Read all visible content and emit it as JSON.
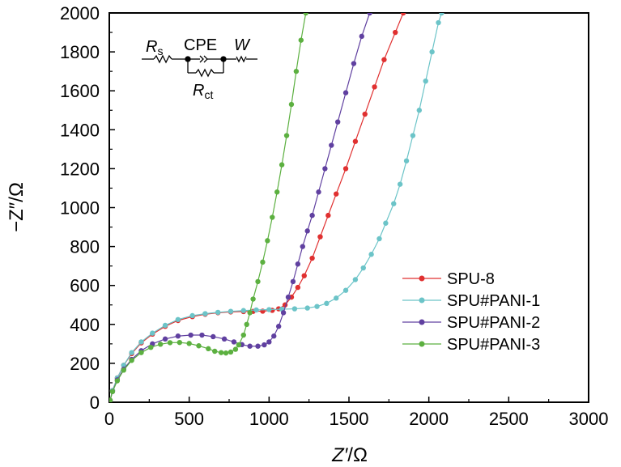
{
  "chart_data": {
    "type": "scatter",
    "title": "",
    "xlabel": {
      "main": "Z′",
      "unit": "/Ω"
    },
    "ylabel": "−Z″/Ω",
    "xlim": [
      0,
      3000
    ],
    "ylim": [
      0,
      2000
    ],
    "xticks": [
      0,
      500,
      1000,
      1500,
      2000,
      2500,
      3000
    ],
    "yticks": [
      0,
      200,
      400,
      600,
      800,
      1000,
      1200,
      1400,
      1600,
      1800,
      2000
    ],
    "tick_labels_x": [
      "0",
      "500",
      "1000",
      "1500",
      "2000",
      "2500",
      "3000"
    ],
    "tick_labels_y": [
      "0",
      "200",
      "400",
      "600",
      "800",
      "1000",
      "1200",
      "1400",
      "1600",
      "1800",
      "2000"
    ],
    "legend_position": "lower-right",
    "series": [
      {
        "name": "SPU-8",
        "color": "#e03030",
        "points": [
          [
            5,
            10
          ],
          [
            20,
            60
          ],
          [
            50,
            125
          ],
          [
            90,
            190
          ],
          [
            140,
            250
          ],
          [
            200,
            305
          ],
          [
            270,
            350
          ],
          [
            350,
            390
          ],
          [
            430,
            420
          ],
          [
            520,
            440
          ],
          [
            600,
            452
          ],
          [
            680,
            460
          ],
          [
            760,
            464
          ],
          [
            840,
            466
          ],
          [
            900,
            467
          ],
          [
            960,
            468
          ],
          [
            1020,
            472
          ],
          [
            1060,
            480
          ],
          [
            1100,
            500
          ],
          [
            1140,
            540
          ],
          [
            1180,
            590
          ],
          [
            1220,
            650
          ],
          [
            1270,
            740
          ],
          [
            1320,
            850
          ],
          [
            1370,
            960
          ],
          [
            1420,
            1070
          ],
          [
            1480,
            1200
          ],
          [
            1540,
            1340
          ],
          [
            1600,
            1480
          ],
          [
            1660,
            1620
          ],
          [
            1720,
            1760
          ],
          [
            1790,
            1900
          ],
          [
            1840,
            2000
          ]
        ]
      },
      {
        "name": "SPU#PANI-1",
        "color": "#6cc4c8",
        "points": [
          [
            5,
            10
          ],
          [
            20,
            60
          ],
          [
            50,
            125
          ],
          [
            90,
            190
          ],
          [
            140,
            255
          ],
          [
            200,
            310
          ],
          [
            270,
            355
          ],
          [
            350,
            395
          ],
          [
            430,
            425
          ],
          [
            520,
            445
          ],
          [
            600,
            455
          ],
          [
            680,
            462
          ],
          [
            760,
            467
          ],
          [
            840,
            471
          ],
          [
            920,
            474
          ],
          [
            1000,
            476
          ],
          [
            1080,
            478
          ],
          [
            1160,
            480
          ],
          [
            1240,
            484
          ],
          [
            1300,
            492
          ],
          [
            1360,
            508
          ],
          [
            1420,
            535
          ],
          [
            1480,
            575
          ],
          [
            1540,
            630
          ],
          [
            1590,
            690
          ],
          [
            1640,
            760
          ],
          [
            1690,
            840
          ],
          [
            1730,
            920
          ],
          [
            1780,
            1020
          ],
          [
            1820,
            1120
          ],
          [
            1860,
            1240
          ],
          [
            1900,
            1370
          ],
          [
            1940,
            1500
          ],
          [
            1980,
            1650
          ],
          [
            2020,
            1800
          ],
          [
            2060,
            1950
          ],
          [
            2080,
            2000
          ]
        ]
      },
      {
        "name": "SPU#PANI-2",
        "color": "#6040a0",
        "points": [
          [
            5,
            10
          ],
          [
            20,
            55
          ],
          [
            50,
            115
          ],
          [
            90,
            170
          ],
          [
            140,
            220
          ],
          [
            200,
            265
          ],
          [
            270,
            300
          ],
          [
            350,
            325
          ],
          [
            430,
            340
          ],
          [
            510,
            345
          ],
          [
            580,
            345
          ],
          [
            650,
            337
          ],
          [
            720,
            325
          ],
          [
            780,
            310
          ],
          [
            830,
            296
          ],
          [
            880,
            288
          ],
          [
            930,
            288
          ],
          [
            970,
            295
          ],
          [
            1000,
            310
          ],
          [
            1030,
            340
          ],
          [
            1060,
            390
          ],
          [
            1090,
            460
          ],
          [
            1120,
            540
          ],
          [
            1150,
            620
          ],
          [
            1180,
            710
          ],
          [
            1210,
            800
          ],
          [
            1240,
            880
          ],
          [
            1270,
            960
          ],
          [
            1310,
            1080
          ],
          [
            1350,
            1200
          ],
          [
            1390,
            1320
          ],
          [
            1430,
            1440
          ],
          [
            1480,
            1590
          ],
          [
            1530,
            1740
          ],
          [
            1580,
            1880
          ],
          [
            1630,
            2000
          ]
        ]
      },
      {
        "name": "SPU#PANI-3",
        "color": "#5cb040",
        "points": [
          [
            5,
            10
          ],
          [
            20,
            55
          ],
          [
            50,
            110
          ],
          [
            90,
            165
          ],
          [
            140,
            215
          ],
          [
            200,
            255
          ],
          [
            260,
            282
          ],
          [
            320,
            298
          ],
          [
            380,
            306
          ],
          [
            440,
            307
          ],
          [
            500,
            302
          ],
          [
            560,
            290
          ],
          [
            620,
            275
          ],
          [
            660,
            262
          ],
          [
            700,
            255
          ],
          [
            730,
            253
          ],
          [
            760,
            258
          ],
          [
            790,
            272
          ],
          [
            810,
            295
          ],
          [
            840,
            345
          ],
          [
            860,
            400
          ],
          [
            880,
            460
          ],
          [
            900,
            530
          ],
          [
            930,
            620
          ],
          [
            960,
            720
          ],
          [
            990,
            830
          ],
          [
            1020,
            950
          ],
          [
            1050,
            1080
          ],
          [
            1080,
            1220
          ],
          [
            1110,
            1370
          ],
          [
            1140,
            1530
          ],
          [
            1170,
            1700
          ],
          [
            1200,
            1860
          ],
          [
            1230,
            2000
          ]
        ]
      }
    ],
    "inset": {
      "components": [
        "Rs",
        "CPE",
        "W",
        "Rct"
      ],
      "labels": {
        "rs_main": "R",
        "rs_sub": "s",
        "cpe": "CPE",
        "w": "W",
        "rct_main": "R",
        "rct_sub": "ct"
      }
    }
  }
}
